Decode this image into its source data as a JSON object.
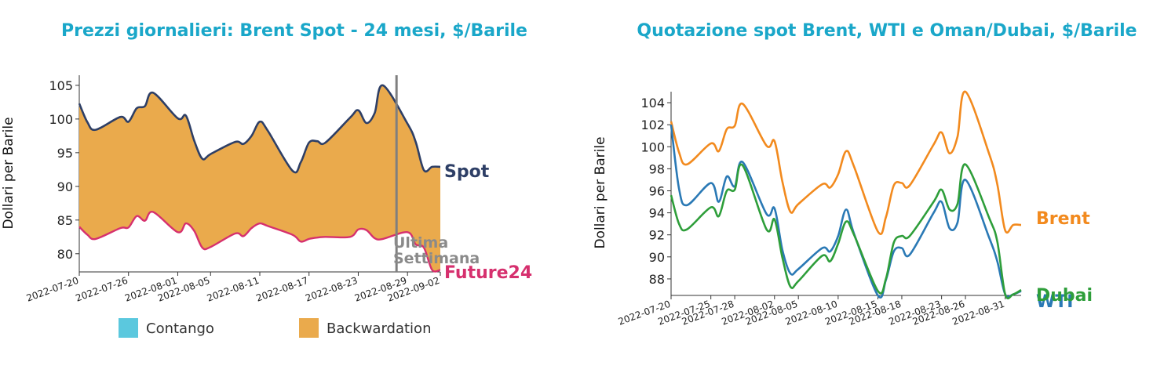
{
  "chart_data": [
    {
      "type": "area",
      "title": "Prezzi giornalieri: Brent Spot - 24 mesi, $/Barile",
      "ylabel": "Dollari per Barile",
      "ylim": [
        77.3,
        106.5
      ],
      "yticks": [
        80,
        85,
        90,
        95,
        100,
        105
      ],
      "xrange": [
        "2022-07-20",
        "2022-09-02"
      ],
      "xticks": [
        "2022-07-20",
        "2022-07-26",
        "2022-08-01",
        "2022-08-05",
        "2022-08-11",
        "2022-08-17",
        "2022-08-23",
        "2022-08-29",
        "2022-09-02"
      ],
      "annotation": {
        "line1": "Ultima",
        "line2": "Settimana",
        "x": "2022-08-29"
      },
      "series": [
        {
          "name": "Spot",
          "color": "#2e3f66",
          "x": [
            "2022-07-20",
            "2022-07-21",
            "2022-07-22",
            "2022-07-25",
            "2022-07-26",
            "2022-07-27",
            "2022-07-28",
            "2022-07-29",
            "2022-08-01",
            "2022-08-02",
            "2022-08-03",
            "2022-08-04",
            "2022-08-05",
            "2022-08-08",
            "2022-08-09",
            "2022-08-10",
            "2022-08-11",
            "2022-08-12",
            "2022-08-15",
            "2022-08-16",
            "2022-08-17",
            "2022-08-18",
            "2022-08-19",
            "2022-08-22",
            "2022-08-23",
            "2022-08-24",
            "2022-08-25",
            "2022-08-26",
            "2022-08-29",
            "2022-08-30",
            "2022-08-31",
            "2022-09-01",
            "2022-09-02"
          ],
          "values": [
            102.3,
            99.5,
            98.4,
            100.3,
            99.6,
            101.6,
            101.9,
            103.9,
            100.1,
            100.5,
            96.8,
            94.1,
            94.8,
            96.6,
            96.3,
            97.5,
            99.6,
            98.2,
            92.3,
            93.6,
            96.5,
            96.7,
            96.5,
            100.2,
            101.3,
            99.4,
            100.9,
            105.0,
            99.3,
            96.6,
            92.4,
            92.9,
            92.9
          ]
        },
        {
          "name": "Future24",
          "color": "#d6306e",
          "x": [
            "2022-07-20",
            "2022-07-21",
            "2022-07-22",
            "2022-07-25",
            "2022-07-26",
            "2022-07-27",
            "2022-07-28",
            "2022-07-29",
            "2022-08-01",
            "2022-08-02",
            "2022-08-03",
            "2022-08-04",
            "2022-08-05",
            "2022-08-08",
            "2022-08-09",
            "2022-08-10",
            "2022-08-11",
            "2022-08-12",
            "2022-08-15",
            "2022-08-16",
            "2022-08-17",
            "2022-08-18",
            "2022-08-19",
            "2022-08-22",
            "2022-08-23",
            "2022-08-24",
            "2022-08-25",
            "2022-08-26",
            "2022-08-29",
            "2022-08-30",
            "2022-08-31",
            "2022-09-01",
            "2022-09-02"
          ],
          "values": [
            84.0,
            82.8,
            82.2,
            83.8,
            83.9,
            85.6,
            84.9,
            86.2,
            83.2,
            84.5,
            83.4,
            80.9,
            81.0,
            83.0,
            82.6,
            83.8,
            84.5,
            84.1,
            82.8,
            81.8,
            82.2,
            82.4,
            82.5,
            82.5,
            83.6,
            83.5,
            82.3,
            82.2,
            83.2,
            81.4,
            80.9,
            77.6,
            77.6
          ]
        }
      ],
      "legend": [
        {
          "label": "Contango",
          "color": "#5bc8de"
        },
        {
          "label": "Backwardation",
          "color": "#eaaa4c"
        }
      ]
    },
    {
      "type": "line",
      "title": "Quotazione spot Brent, WTI e Oman/Dubai, $/Barile",
      "ylabel": "Dollari per Barile",
      "ylim": [
        86.5,
        105.0
      ],
      "yticks": [
        88,
        90,
        92,
        94,
        96,
        98,
        100,
        102,
        104
      ],
      "xrange": [
        "2022-07-20",
        "2022-09-02"
      ],
      "xticks": [
        "2022-07-20",
        "2022-07-25",
        "2022-07-28",
        "2022-08-02",
        "2022-08-05",
        "2022-08-10",
        "2022-08-15",
        "2022-08-18",
        "2022-08-23",
        "2022-08-26",
        "2022-08-31"
      ],
      "series": [
        {
          "name": "Brent",
          "color": "#f28a1e",
          "x": [
            "2022-07-20",
            "2022-07-21",
            "2022-07-22",
            "2022-07-25",
            "2022-07-26",
            "2022-07-27",
            "2022-07-28",
            "2022-07-29",
            "2022-08-01",
            "2022-08-02",
            "2022-08-03",
            "2022-08-04",
            "2022-08-05",
            "2022-08-08",
            "2022-08-09",
            "2022-08-10",
            "2022-08-11",
            "2022-08-12",
            "2022-08-15",
            "2022-08-16",
            "2022-08-17",
            "2022-08-18",
            "2022-08-19",
            "2022-08-22",
            "2022-08-23",
            "2022-08-24",
            "2022-08-25",
            "2022-08-26",
            "2022-08-29",
            "2022-08-30",
            "2022-08-31",
            "2022-09-01",
            "2022-09-02"
          ],
          "values": [
            102.3,
            99.5,
            98.4,
            100.3,
            99.6,
            101.6,
            101.9,
            103.9,
            100.1,
            100.5,
            96.8,
            94.1,
            94.8,
            96.6,
            96.3,
            97.5,
            99.6,
            98.2,
            92.3,
            93.6,
            96.5,
            96.7,
            96.5,
            100.2,
            101.3,
            99.4,
            100.9,
            105.0,
            99.3,
            96.6,
            92.4,
            92.9,
            92.9
          ]
        },
        {
          "name": "WTI",
          "color": "#2a79b5",
          "x": [
            "2022-07-20",
            "2022-07-21",
            "2022-07-22",
            "2022-07-25",
            "2022-07-26",
            "2022-07-27",
            "2022-07-28",
            "2022-07-29",
            "2022-08-01",
            "2022-08-02",
            "2022-08-03",
            "2022-08-04",
            "2022-08-05",
            "2022-08-08",
            "2022-08-09",
            "2022-08-10",
            "2022-08-11",
            "2022-08-12",
            "2022-08-15",
            "2022-08-16",
            "2022-08-17",
            "2022-08-18",
            "2022-08-19",
            "2022-08-22",
            "2022-08-23",
            "2022-08-24",
            "2022-08-25",
            "2022-08-26",
            "2022-08-29",
            "2022-08-30",
            "2022-08-31",
            "2022-09-01",
            "2022-09-02"
          ],
          "values": [
            102.0,
            96.2,
            94.7,
            96.7,
            95.0,
            97.3,
            96.4,
            98.6,
            93.9,
            94.4,
            90.6,
            88.5,
            88.9,
            90.8,
            90.5,
            91.9,
            94.3,
            92.1,
            86.5,
            87.9,
            90.5,
            90.8,
            90.2,
            94.0,
            95.0,
            92.6,
            93.1,
            97.0,
            91.7,
            89.6,
            86.6,
            86.6,
            86.9
          ]
        },
        {
          "name": "Dubai",
          "color": "#2e9e3a",
          "x": [
            "2022-07-20",
            "2022-07-21",
            "2022-07-22",
            "2022-07-25",
            "2022-07-26",
            "2022-07-27",
            "2022-07-28",
            "2022-07-29",
            "2022-08-01",
            "2022-08-02",
            "2022-08-03",
            "2022-08-04",
            "2022-08-05",
            "2022-08-08",
            "2022-08-09",
            "2022-08-10",
            "2022-08-11",
            "2022-08-12",
            "2022-08-15",
            "2022-08-16",
            "2022-08-17",
            "2022-08-18",
            "2022-08-19",
            "2022-08-22",
            "2022-08-23",
            "2022-08-24",
            "2022-08-25",
            "2022-08-26",
            "2022-08-29",
            "2022-08-30",
            "2022-08-31",
            "2022-09-01",
            "2022-09-02"
          ],
          "values": [
            95.6,
            93.0,
            92.5,
            94.5,
            93.7,
            96.0,
            96.1,
            98.3,
            92.5,
            93.4,
            89.9,
            87.3,
            87.8,
            90.1,
            89.6,
            91.2,
            93.2,
            92.0,
            86.9,
            88.0,
            91.3,
            91.9,
            91.9,
            95.0,
            96.1,
            94.3,
            94.8,
            98.4,
            93.5,
            91.4,
            86.6,
            86.6,
            87.0
          ]
        }
      ]
    }
  ]
}
